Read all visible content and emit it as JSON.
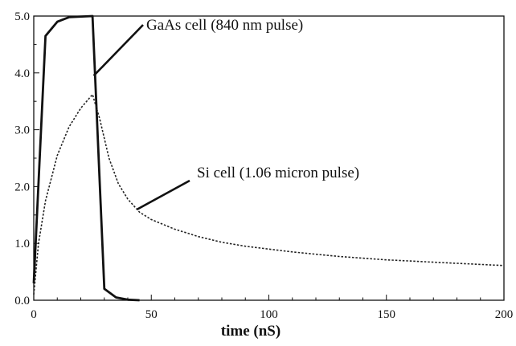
{
  "chart_data": {
    "type": "line",
    "title": "",
    "xlabel": "time (nS)",
    "ylabel": "",
    "xlim": [
      0,
      200
    ],
    "ylim": [
      0,
      5
    ],
    "x_ticks": [
      0,
      50,
      100,
      150,
      200
    ],
    "y_ticks": [
      0,
      1,
      2,
      3,
      4,
      5
    ],
    "x_tick_labels": [
      "0",
      "50",
      "100",
      "150",
      "200"
    ],
    "y_tick_labels": [
      "0.0",
      "1.0",
      "2.0",
      "3.0",
      "4.0",
      "5.0"
    ],
    "grid": false,
    "series": [
      {
        "name": "GaAs cell (840 nm pulse)",
        "style": "solid-thick",
        "x": [
          0,
          5,
          10,
          15,
          25,
          30,
          35,
          40,
          45
        ],
        "y": [
          0.3,
          4.65,
          4.9,
          4.98,
          5.0,
          0.2,
          0.05,
          0.01,
          0.0
        ]
      },
      {
        "name": "Si cell (1.06 micron pulse)",
        "style": "dotted",
        "x": [
          0,
          2,
          5,
          10,
          15,
          20,
          25,
          28,
          32,
          36,
          40,
          45,
          50,
          60,
          70,
          80,
          90,
          100,
          110,
          120,
          130,
          140,
          150,
          160,
          170,
          180,
          190,
          200
        ],
        "y": [
          0.1,
          1.0,
          1.75,
          2.55,
          3.05,
          3.38,
          3.62,
          3.2,
          2.5,
          2.05,
          1.78,
          1.55,
          1.42,
          1.25,
          1.12,
          1.02,
          0.95,
          0.9,
          0.85,
          0.81,
          0.77,
          0.74,
          0.71,
          0.69,
          0.67,
          0.65,
          0.63,
          0.61
        ]
      }
    ],
    "annotations": [
      {
        "text": "GaAs cell (840 nm pulse)",
        "series": 0,
        "at_x": 25.5,
        "at_y": 3.95
      },
      {
        "text": "Si cell (1.06 micron pulse)",
        "series": 1,
        "at_x": 44,
        "at_y": 1.6
      }
    ]
  }
}
